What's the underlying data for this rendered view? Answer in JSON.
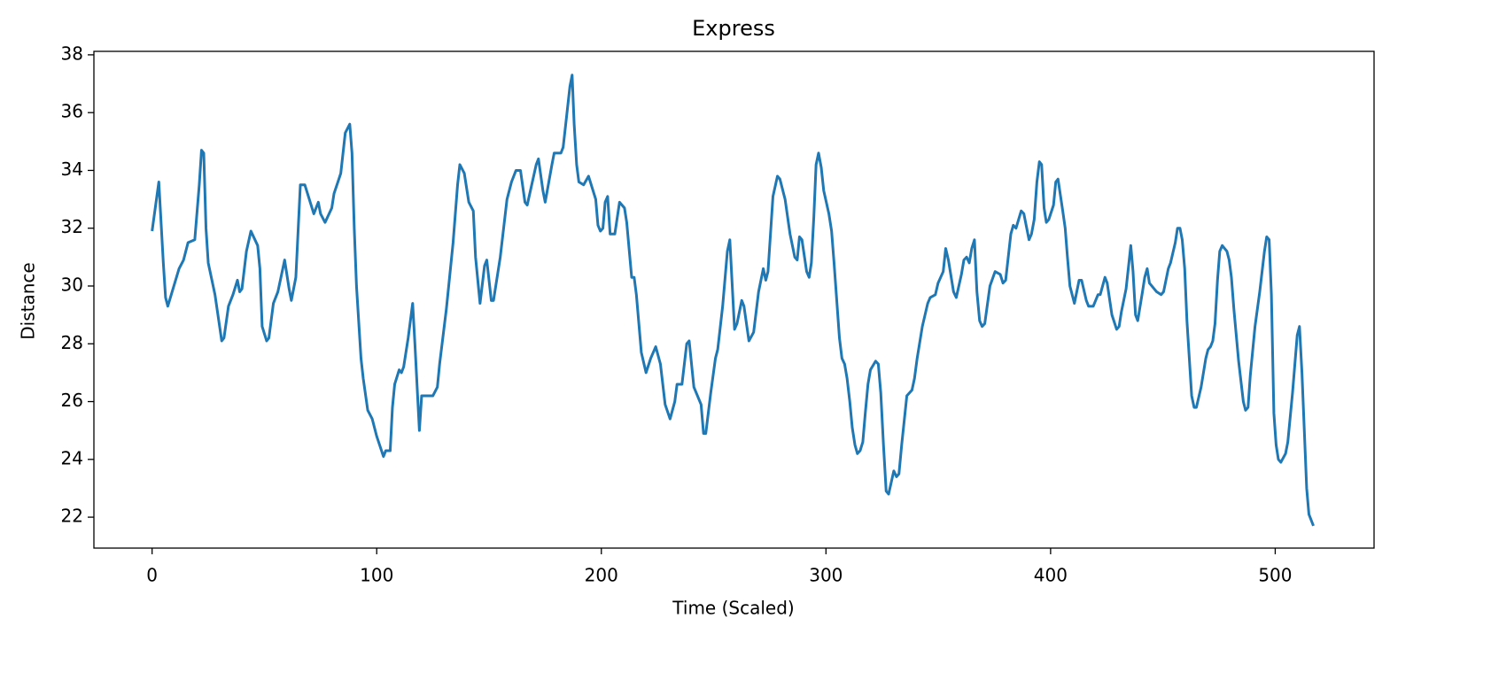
{
  "chart_data": {
    "type": "line",
    "title": "Express",
    "xlabel": "Time (Scaled)",
    "ylabel": "Distance",
    "xlim": [
      -25.9,
      544.0
    ],
    "ylim": [
      20.93,
      38.12
    ],
    "xticks": [
      0,
      100,
      200,
      300,
      400,
      500
    ],
    "yticks": [
      22,
      24,
      26,
      28,
      30,
      32,
      34,
      36,
      38
    ],
    "series": [
      {
        "color": "#1f77b4",
        "x": [
          0,
          3,
          5,
          6,
          7,
          12,
          14,
          16,
          19,
          21,
          22,
          23,
          24,
          25,
          28,
          31,
          32,
          34,
          36,
          38,
          39,
          40,
          42,
          44,
          47,
          48,
          49,
          51,
          52,
          54,
          56,
          59,
          61,
          62,
          64,
          66,
          68,
          72,
          74,
          75,
          77,
          80,
          81,
          84,
          86,
          88,
          89,
          90,
          91,
          93,
          94,
          96,
          98,
          100,
          103,
          104,
          106,
          107,
          108,
          110,
          111,
          112,
          114,
          116,
          117,
          119,
          120,
          125,
          127,
          128,
          131,
          134,
          136,
          137,
          139,
          141,
          143,
          144,
          146,
          148,
          149,
          151,
          152,
          155,
          158,
          160,
          162,
          164,
          166,
          167,
          171,
          172,
          174,
          175,
          178,
          179,
          182,
          183,
          184,
          186,
          187,
          187.9,
          189,
          190,
          192.1,
          194.3,
          197.5,
          198.5,
          199.6,
          200.7,
          201.7,
          202.8,
          203.9,
          206,
          208.1,
          210.3,
          211.3,
          213.5,
          214.6,
          215.6,
          217.8,
          219.9,
          222,
          224.2,
          226.3,
          228.4,
          230.6,
          232.7,
          233.7,
          235.9,
          238,
          239.1,
          241.2,
          244.4,
          245.5,
          246.5,
          248.7,
          250.8,
          251.8,
          254,
          256.1,
          257.2,
          259.3,
          260.4,
          262.5,
          263.5,
          265.7,
          267.8,
          270,
          272.1,
          273.2,
          274.2,
          276.4,
          278.4,
          279.5,
          281.8,
          284,
          286.1,
          287.2,
          288.2,
          289.3,
          291.4,
          292.5,
          293.5,
          294.6,
          295.6,
          296.7,
          297.9,
          299,
          301.3,
          302.5,
          303.6,
          304.8,
          306,
          307.1,
          308.3,
          309.4,
          310.6,
          311.7,
          312.9,
          314,
          315.2,
          316.4,
          317.5,
          318.7,
          319.8,
          322.1,
          323.3,
          324.4,
          325.6,
          326.8,
          327.9,
          330.2,
          331.4,
          332.5,
          333.7,
          336,
          338.3,
          339.4,
          340.6,
          342.9,
          345.3,
          346.4,
          348.7,
          349.9,
          352.2,
          353.3,
          354.5,
          356.8,
          358,
          360.3,
          361.4,
          362.6,
          363.8,
          364.9,
          366.1,
          367.2,
          368.4,
          369.5,
          370.7,
          373,
          375.3,
          377.6,
          378.8,
          380,
          382.3,
          383.4,
          384.6,
          386.9,
          388.1,
          390.4,
          391.5,
          392.7,
          393.9,
          395,
          396,
          397.1,
          398.1,
          399.2,
          401.3,
          402.3,
          403.3,
          405.4,
          406.5,
          407.5,
          408.6,
          410.6,
          412.7,
          413.8,
          415.9,
          416.9,
          419,
          421.1,
          422.1,
          424.2,
          425.2,
          427.3,
          429.4,
          430.5,
          431.5,
          433.6,
          435.7,
          436.7,
          437.8,
          438.8,
          440.9,
          441.9,
          443,
          444,
          447.2,
          449.2,
          450.3,
          452.4,
          453.4,
          455.5,
          456.5,
          457.6,
          458.6,
          459.7,
          460.7,
          462.8,
          463.9,
          464.9,
          467,
          469.1,
          470.1,
          471.2,
          472.2,
          473.2,
          474.3,
          475.3,
          476.4,
          478.5,
          479.5,
          480.5,
          481.6,
          483.7,
          485.8,
          486.8,
          487.9,
          488.9,
          491,
          493.1,
          495.2,
          496.2,
          497.3,
          498.3,
          499.4,
          500.4,
          501.4,
          502.5,
          504.6,
          505.6,
          507.7,
          509.8,
          510.8,
          511.9,
          514,
          515,
          517
        ],
        "values": [
          31.9,
          33.6,
          30.8,
          29.6,
          29.3,
          30.6,
          30.9,
          31.5,
          31.6,
          33.5,
          34.7,
          34.6,
          32.0,
          30.8,
          29.7,
          28.1,
          28.2,
          29.3,
          29.7,
          30.2,
          29.8,
          29.9,
          31.2,
          31.9,
          31.4,
          30.6,
          28.6,
          28.1,
          28.2,
          29.4,
          29.8,
          30.9,
          29.9,
          29.5,
          30.3,
          33.5,
          33.5,
          32.5,
          32.9,
          32.5,
          32.2,
          32.7,
          33.2,
          33.9,
          35.3,
          35.6,
          34.6,
          32.0,
          30.0,
          27.5,
          26.8,
          25.7,
          25.4,
          24.8,
          24.1,
          24.3,
          24.3,
          25.8,
          26.6,
          27.1,
          27.0,
          27.2,
          28.2,
          29.4,
          28.0,
          25.0,
          26.2,
          26.2,
          26.5,
          27.3,
          29.2,
          31.5,
          33.5,
          34.2,
          33.9,
          32.9,
          32.6,
          31.0,
          29.4,
          30.7,
          30.9,
          29.5,
          29.5,
          31.0,
          33.0,
          33.6,
          34.0,
          34.0,
          32.9,
          32.8,
          34.2,
          34.4,
          33.3,
          32.9,
          34.2,
          34.6,
          34.6,
          34.8,
          35.5,
          36.9,
          37.3,
          35.6,
          34.2,
          33.6,
          33.5,
          33.8,
          33.0,
          32.1,
          31.9,
          32.0,
          32.9,
          33.1,
          31.8,
          31.8,
          32.9,
          32.7,
          32.2,
          30.3,
          30.3,
          29.7,
          27.7,
          27.0,
          27.5,
          27.9,
          27.3,
          25.9,
          25.4,
          26.0,
          26.6,
          26.6,
          28.0,
          28.1,
          26.5,
          25.9,
          24.9,
          24.9,
          26.3,
          27.5,
          27.8,
          29.3,
          31.2,
          31.6,
          28.5,
          28.7,
          29.5,
          29.3,
          28.1,
          28.4,
          29.8,
          30.6,
          30.2,
          30.5,
          33.1,
          33.8,
          33.7,
          33.0,
          31.8,
          31.0,
          30.9,
          31.7,
          31.6,
          30.5,
          30.3,
          30.8,
          32.4,
          34.2,
          34.6,
          34.1,
          33.3,
          32.5,
          31.9,
          30.8,
          29.5,
          28.2,
          27.5,
          27.3,
          26.8,
          26.0,
          25.1,
          24.5,
          24.2,
          24.3,
          24.6,
          25.6,
          26.6,
          27.1,
          27.4,
          27.3,
          26.3,
          24.5,
          22.9,
          22.8,
          23.6,
          23.4,
          23.5,
          24.5,
          26.2,
          26.4,
          26.8,
          27.5,
          28.6,
          29.4,
          29.6,
          29.7,
          30.1,
          30.5,
          31.3,
          30.9,
          29.8,
          29.6,
          30.4,
          30.9,
          31.0,
          30.8,
          31.3,
          31.6,
          29.8,
          28.8,
          28.6,
          28.7,
          30.0,
          30.5,
          30.4,
          30.1,
          30.2,
          31.8,
          32.1,
          32.0,
          32.6,
          32.5,
          31.6,
          31.8,
          32.3,
          33.6,
          34.3,
          34.2,
          32.7,
          32.2,
          32.3,
          32.8,
          33.6,
          33.7,
          32.6,
          32.0,
          31.0,
          30.0,
          29.4,
          30.2,
          30.2,
          29.5,
          29.3,
          29.3,
          29.7,
          29.7,
          30.3,
          30.1,
          29.0,
          28.5,
          28.6,
          29.1,
          29.9,
          31.4,
          30.5,
          29.0,
          28.8,
          29.8,
          30.3,
          30.6,
          30.1,
          29.8,
          29.7,
          29.8,
          30.6,
          30.8,
          31.5,
          32.0,
          32.0,
          31.6,
          30.6,
          28.8,
          26.2,
          25.8,
          25.8,
          26.5,
          27.5,
          27.8,
          27.9,
          28.1,
          28.7,
          30.2,
          31.2,
          31.4,
          31.2,
          30.9,
          30.3,
          29.2,
          27.4,
          26.0,
          25.7,
          25.8,
          26.9,
          28.6,
          29.8,
          31.2,
          31.7,
          31.6,
          29.7,
          25.6,
          24.5,
          24.0,
          23.9,
          24.2,
          24.6,
          26.3,
          28.3,
          28.6,
          27.0,
          23.0,
          22.1,
          21.7
        ]
      }
    ]
  }
}
